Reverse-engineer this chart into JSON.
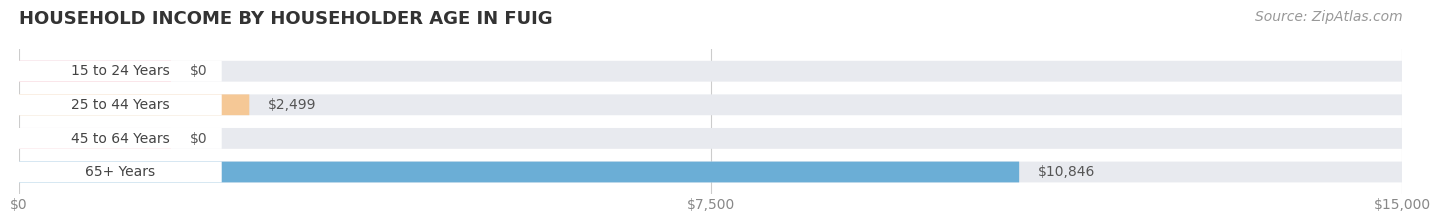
{
  "title": "HOUSEHOLD INCOME BY HOUSEHOLDER AGE IN FUIG",
  "source": "Source: ZipAtlas.com",
  "categories": [
    "15 to 24 Years",
    "25 to 44 Years",
    "45 to 64 Years",
    "65+ Years"
  ],
  "values": [
    0,
    2499,
    0,
    10846
  ],
  "bar_colors": [
    "#f4a0b0",
    "#f5c896",
    "#f4a0b0",
    "#6baed6"
  ],
  "bar_labels": [
    "$0",
    "$2,499",
    "$0",
    "$10,846"
  ],
  "value_label_colors": [
    "#555555",
    "#555555",
    "#555555",
    "#ffffff"
  ],
  "xlim": [
    0,
    15000
  ],
  "xticks": [
    0,
    7500,
    15000
  ],
  "xticklabels": [
    "$0",
    "$7,500",
    "$15,000"
  ],
  "background_color": "#ffffff",
  "bar_bg_color": "#e8eaef",
  "title_fontsize": 13,
  "cat_fontsize": 10,
  "val_fontsize": 10,
  "tick_fontsize": 10,
  "source_fontsize": 10
}
